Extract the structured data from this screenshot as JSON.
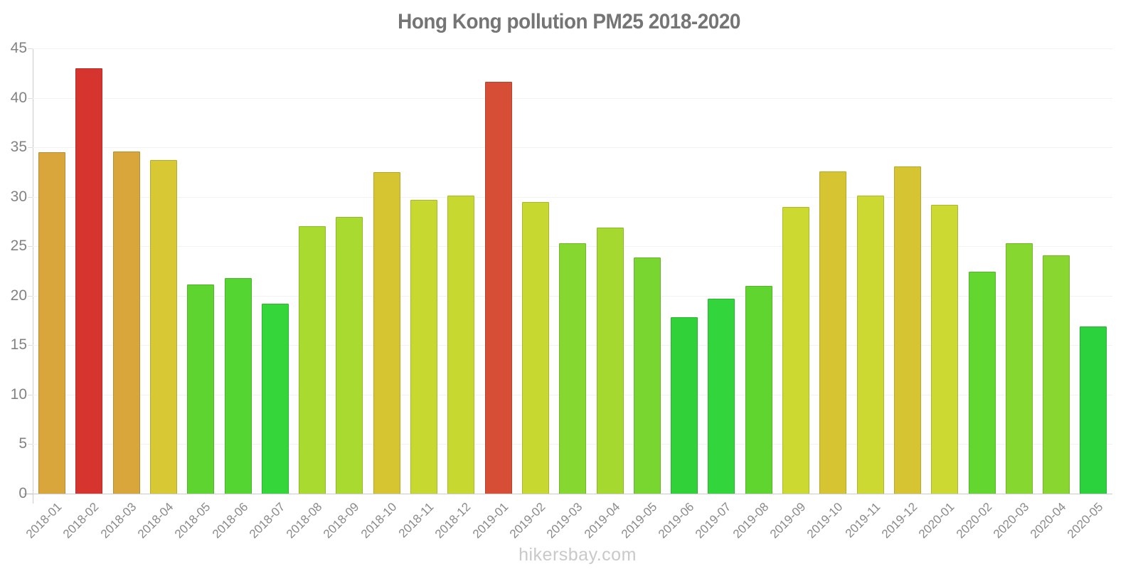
{
  "title": "Hong Kong pollution PM25 2018-2020",
  "footer": {
    "watermark": "hikersbay.com"
  },
  "chart_data": {
    "type": "bar",
    "title": "Hong Kong pollution PM25 2018-2020",
    "xlabel": "",
    "ylabel": "",
    "ylim": [
      0,
      45
    ],
    "yticks": [
      0,
      5,
      10,
      15,
      20,
      25,
      30,
      35,
      40,
      45
    ],
    "grid": "horizontal",
    "legend": "none",
    "categories": [
      "2018-01",
      "2018-02",
      "2018-03",
      "2018-04",
      "2018-05",
      "2018-06",
      "2018-07",
      "2018-08",
      "2018-09",
      "2018-10",
      "2018-11",
      "2018-12",
      "2019-01",
      "2019-02",
      "2019-03",
      "2019-04",
      "2019-05",
      "2019-06",
      "2019-07",
      "2019-08",
      "2019-09",
      "2019-10",
      "2019-11",
      "2019-12",
      "2020-01",
      "2020-02",
      "2020-03",
      "2020-04",
      "2020-05"
    ],
    "values": [
      34.5,
      43.0,
      34.6,
      33.7,
      21.1,
      21.8,
      19.2,
      27.0,
      28.0,
      32.5,
      29.7,
      30.1,
      41.6,
      29.5,
      25.3,
      26.9,
      23.9,
      17.8,
      19.7,
      21.0,
      29.0,
      32.6,
      30.1,
      33.1,
      29.2,
      22.4,
      25.3,
      24.1,
      16.9
    ],
    "bar_colors": [
      "#D8A63B",
      "#D6352F",
      "#D8A63B",
      "#D8C934",
      "#5DD430",
      "#55D532",
      "#34D639",
      "#A8DA30",
      "#A8DA30",
      "#D7C431",
      "#C7D930",
      "#C7D930",
      "#D74E36",
      "#C7D930",
      "#86D830",
      "#A5D930",
      "#79D530",
      "#30D139",
      "#32D53B",
      "#60D52F",
      "#CBD931",
      "#D6C432",
      "#CBD932",
      "#D6C432",
      "#CBD932",
      "#63D72F",
      "#86D830",
      "#8AD630",
      "#2CD13E"
    ],
    "colors_legend": {
      "red_high": "#D6352F",
      "orange_amber": "#D8A63B",
      "yellow": "#D7C431",
      "yellow_green": "#C7D930",
      "green": "#86D830",
      "bright_green": "#2CD13E"
    },
    "axis_color": "#cccccc",
    "grid_color": "#f2f2f2",
    "tick_label_color": "#828282",
    "x_label_color": "#8a8a8a",
    "title_color": "#757575",
    "watermark_color": "#c9c9c9"
  }
}
